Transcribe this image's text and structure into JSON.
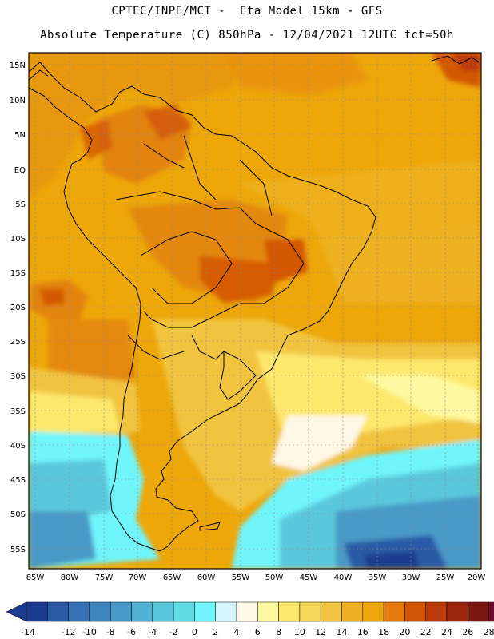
{
  "header": {
    "title_line1": "CPTEC/INPE/MCT -  Eta Model 15km - GFS",
    "title_line2": "Absolute Temperature (C) 850hPa - 12/04/2021 12UTC fct=50h"
  },
  "map_axes": {
    "lat_labels": [
      "15N",
      "10N",
      "5N",
      "EQ",
      "5S",
      "10S",
      "15S",
      "20S",
      "25S",
      "30S",
      "35S",
      "40S",
      "45S",
      "50S",
      "55S"
    ],
    "lon_labels": [
      "85W",
      "80W",
      "75W",
      "70W",
      "65W",
      "60W",
      "55W",
      "50W",
      "45W",
      "40W",
      "35W",
      "30W",
      "25W",
      "20W"
    ]
  },
  "colorbar": {
    "labels": [
      "-14",
      "-12",
      "-10",
      "-8",
      "-6",
      "-4",
      "-2",
      "0",
      "2",
      "4",
      "6",
      "8",
      "10",
      "12",
      "14",
      "16",
      "18",
      "20",
      "22",
      "24",
      "26",
      "28"
    ],
    "colors": [
      "#1c3d8f",
      "#2b5aa6",
      "#3773b5",
      "#3f86bd",
      "#4a9ac7",
      "#52b1d4",
      "#5ac8dc",
      "#5fdbe6",
      "#6ff5fb",
      "#d6f6ff",
      "#fff8e6",
      "#fef9a0",
      "#fde86c",
      "#f8d85a",
      "#f1c441",
      "#edb123",
      "#eda70b",
      "#e67a0d",
      "#d35606",
      "#bb3b0c",
      "#9c270b",
      "#7d1912",
      "#6b0d2c"
    ],
    "lower_colour": "#1c3d8f",
    "upper_colour": "#6b0d2c"
  }
}
